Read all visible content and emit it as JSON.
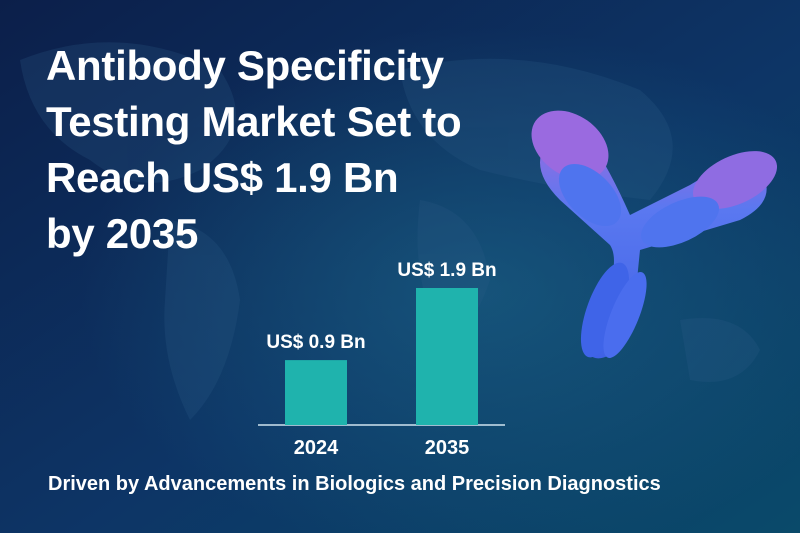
{
  "chart_data": {
    "type": "bar",
    "title": "Antibody Specificity\nTesting Market Set to\nReach US$ 1.9 Bn\nby 2035",
    "categories": [
      "2024",
      "2035"
    ],
    "values": [
      0.9,
      1.9
    ],
    "value_labels": [
      "US$ 0.9 Bn",
      "US$ 1.9 Bn"
    ],
    "color": "#1fb3ad",
    "caption": "Driven by Advancements in Biologics and Precision Diagnostics"
  }
}
